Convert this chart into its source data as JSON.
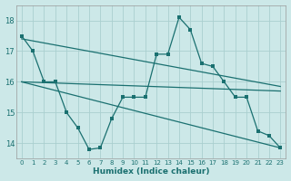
{
  "xlabel": "Humidex (Indice chaleur)",
  "bg_color": "#cce8e8",
  "grid_color": "#aacfcf",
  "line_color": "#1a7070",
  "xlim": [
    -0.5,
    23.5
  ],
  "ylim": [
    13.5,
    18.5
  ],
  "yticks": [
    14,
    15,
    16,
    17,
    18
  ],
  "xticks": [
    0,
    1,
    2,
    3,
    4,
    5,
    6,
    7,
    8,
    9,
    10,
    11,
    12,
    13,
    14,
    15,
    16,
    17,
    18,
    19,
    20,
    21,
    22,
    23
  ],
  "line_main_x": [
    0,
    1,
    2,
    3,
    4,
    5,
    6,
    7,
    8,
    9,
    10,
    11,
    12,
    13,
    14,
    15,
    16,
    17,
    18,
    19,
    20,
    21,
    22,
    23
  ],
  "line_main_y": [
    17.5,
    17.0,
    16.0,
    16.0,
    15.0,
    14.5,
    13.8,
    13.85,
    14.8,
    15.5,
    15.5,
    15.5,
    16.9,
    16.9,
    18.1,
    17.7,
    16.6,
    16.5,
    16.0,
    15.5,
    15.5,
    14.4,
    14.25,
    13.85
  ],
  "trend1_x": [
    0,
    23
  ],
  "trend1_y": [
    17.4,
    15.85
  ],
  "trend2_x": [
    0,
    23
  ],
  "trend2_y": [
    16.0,
    15.7
  ],
  "trend3_x": [
    0,
    23
  ],
  "trend3_y": [
    16.0,
    13.85
  ]
}
